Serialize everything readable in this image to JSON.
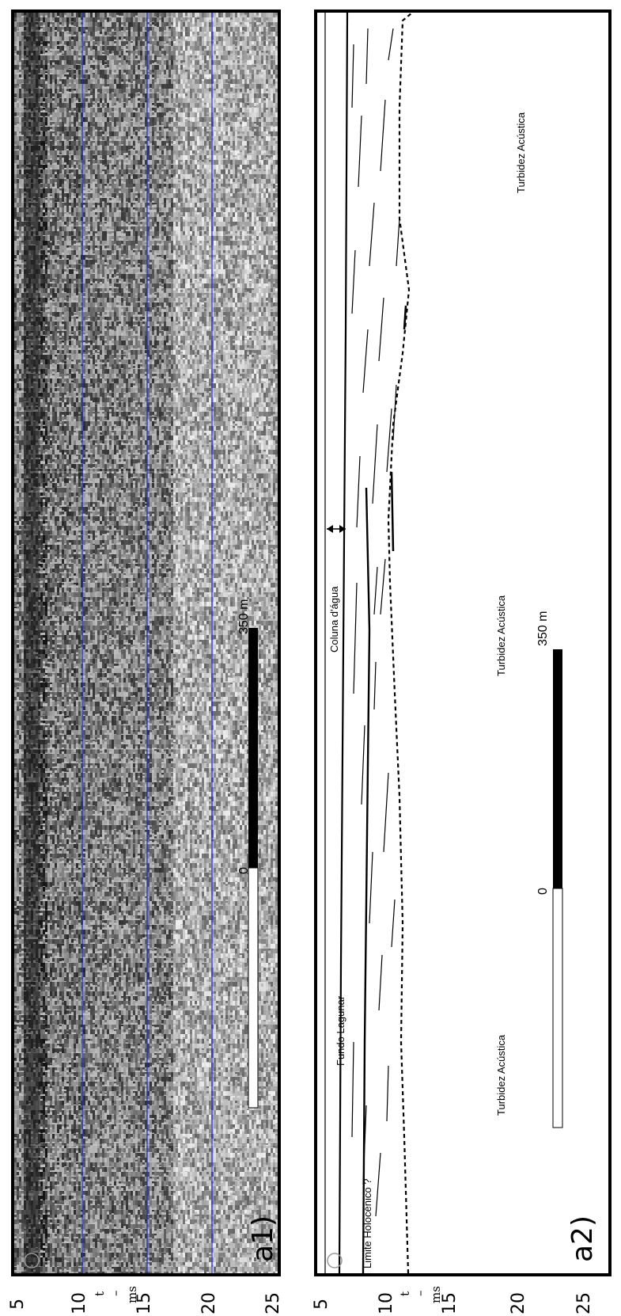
{
  "panel_a1": {
    "label": "a1)",
    "scale_bar": {
      "start_label": "0",
      "end_label": "350 m"
    }
  },
  "panel_a2": {
    "label": "a2)",
    "scale_bar": {
      "start_label": "0",
      "end_label": "350 m"
    },
    "annotations": {
      "coluna": "Coluna d'água",
      "fundo": "Fundo Lagunar",
      "limite": "Limite Holocénico ?",
      "turbidez_top": "Turbidez Acústica",
      "turbidez_mid": "Turbidez Acústica",
      "turbidez_bottom": "Turbidez Acústica"
    }
  },
  "axis": {
    "ticks": [
      "5",
      "10",
      "15",
      "20",
      "25"
    ],
    "unit_ms": "ms",
    "unit_t": "t",
    "unit_dash": "–"
  },
  "colors": {
    "gridline": "#1a2bd1",
    "frame": "#000000"
  }
}
